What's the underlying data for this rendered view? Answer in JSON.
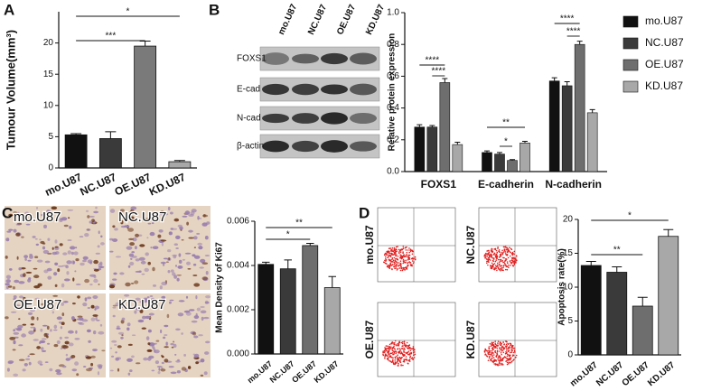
{
  "chart_data": [
    {
      "type": "bar",
      "panel_label": "A",
      "ylabel": "Tumour Volume(mm³)",
      "categories": [
        "mo.U87",
        "NC.U87",
        "OE.U87",
        "KD.U87"
      ],
      "values": [
        5.3,
        4.7,
        19.5,
        1.0
      ],
      "errors": [
        0.2,
        1.1,
        0.8,
        0.2
      ],
      "colors": [
        "#111111",
        "#3a3a3a",
        "#7a7a7a",
        "#a8a8a8"
      ],
      "ylim": [
        0,
        25
      ],
      "yticks": [
        0,
        5,
        10,
        15,
        20
      ],
      "comparisons": [
        {
          "label": "***",
          "groups": [
            "mo.U87",
            "OE.U87"
          ]
        },
        {
          "label": "*",
          "groups": [
            "mo.U87",
            "KD.U87"
          ]
        }
      ]
    },
    {
      "type": "grouped_bar",
      "panel_label": "B",
      "ylabel": "Relative protein expression",
      "categories": [
        "FOXS1",
        "E-cadherin",
        "N-cadherin"
      ],
      "series": [
        {
          "name": "mo.U87",
          "color": "#111111",
          "values": [
            0.28,
            0.12,
            0.57
          ],
          "errors": [
            0.015,
            0.01,
            0.02
          ]
        },
        {
          "name": "NC.U87",
          "color": "#3a3a3a",
          "values": [
            0.28,
            0.11,
            0.54
          ],
          "errors": [
            0.01,
            0.01,
            0.025
          ]
        },
        {
          "name": "OE.U87",
          "color": "#6e6e6e",
          "values": [
            0.56,
            0.07,
            0.8
          ],
          "errors": [
            0.025,
            0.005,
            0.02
          ]
        },
        {
          "name": "KD.U87",
          "color": "#a8a8a8",
          "values": [
            0.17,
            0.18,
            0.37
          ],
          "errors": [
            0.015,
            0.01,
            0.02
          ]
        }
      ],
      "ylim": [
        0,
        1.0
      ],
      "yticks": [
        {
          "value": 0,
          "label": "0.0"
        },
        0.2,
        0.4,
        0.6,
        0.8,
        {
          "value": 1.0,
          "label": "1.0"
        }
      ],
      "legend": "right",
      "comparisons": [
        {
          "category": "FOXS1",
          "label": "****",
          "groups": [
            "mo.U87",
            "OE.U87"
          ]
        },
        {
          "category": "FOXS1",
          "label": "****",
          "groups": [
            "NC.U87",
            "OE.U87"
          ]
        },
        {
          "category": "E-cadherin",
          "label": "**",
          "groups": [
            "mo.U87",
            "KD.U87"
          ]
        },
        {
          "category": "E-cadherin",
          "label": "*",
          "groups": [
            "NC.U87",
            "OE.U87"
          ]
        },
        {
          "category": "N-cadherin",
          "label": "****",
          "groups": [
            "mo.U87",
            "OE.U87"
          ]
        },
        {
          "category": "N-cadherin",
          "label": "****",
          "groups": [
            "NC.U87",
            "OE.U87"
          ]
        }
      ]
    },
    {
      "type": "bar",
      "panel_label": "C",
      "ylabel": "Mean Density of Ki67",
      "categories": [
        "mo.U87",
        "NC.U87",
        "OE.U87",
        "KD.U87"
      ],
      "values": [
        0.00405,
        0.00385,
        0.0049,
        0.003
      ],
      "errors": [
        0.0001,
        0.0004,
        0.0001,
        0.0005
      ],
      "colors": [
        "#111111",
        "#3a3a3a",
        "#6e6e6e",
        "#a8a8a8"
      ],
      "ylim": [
        0,
        0.006
      ],
      "yticks": [
        {
          "value": 0,
          "label": "0.000"
        },
        {
          "value": 0.002,
          "label": "0.002"
        },
        {
          "value": 0.004,
          "label": "0.004"
        },
        {
          "value": 0.006,
          "label": "0.006"
        }
      ],
      "comparisons": [
        {
          "label": "*",
          "groups": [
            "mo.U87",
            "OE.U87"
          ]
        },
        {
          "label": "**",
          "groups": [
            "mo.U87",
            "KD.U87"
          ]
        }
      ]
    },
    {
      "type": "bar",
      "panel_label": "D",
      "ylabel": "Apoptosis rate(%)",
      "categories": [
        "mo.U87",
        "NC.U87",
        "OE.U87",
        "KD.U87"
      ],
      "values": [
        13.2,
        12.2,
        7.2,
        17.5
      ],
      "errors": [
        0.6,
        0.8,
        1.3,
        1.0
      ],
      "colors": [
        "#111111",
        "#3a3a3a",
        "#6e6e6e",
        "#a8a8a8"
      ],
      "ylim": [
        0,
        20
      ],
      "yticks": [
        0,
        5,
        10,
        15,
        20
      ],
      "comparisons": [
        {
          "label": "**",
          "groups": [
            "mo.U87",
            "OE.U87"
          ]
        },
        {
          "label": "*",
          "groups": [
            "mo.U87",
            "KD.U87"
          ]
        }
      ]
    }
  ],
  "western_blot": {
    "lanes": [
      "mo.U87",
      "NC.U87",
      "OE.U87",
      "KD.U87"
    ],
    "proteins": [
      "FOXS1",
      "E-cad",
      "N-cad",
      "β-actin"
    ]
  },
  "micrographs": {
    "labels": [
      "mo.U87",
      "NC.U87",
      "OE.U87",
      "KD.U87"
    ]
  },
  "flow_plots": {
    "labels": [
      "mo.U87",
      "NC.U87",
      "OE.U87",
      "KD.U87"
    ]
  }
}
